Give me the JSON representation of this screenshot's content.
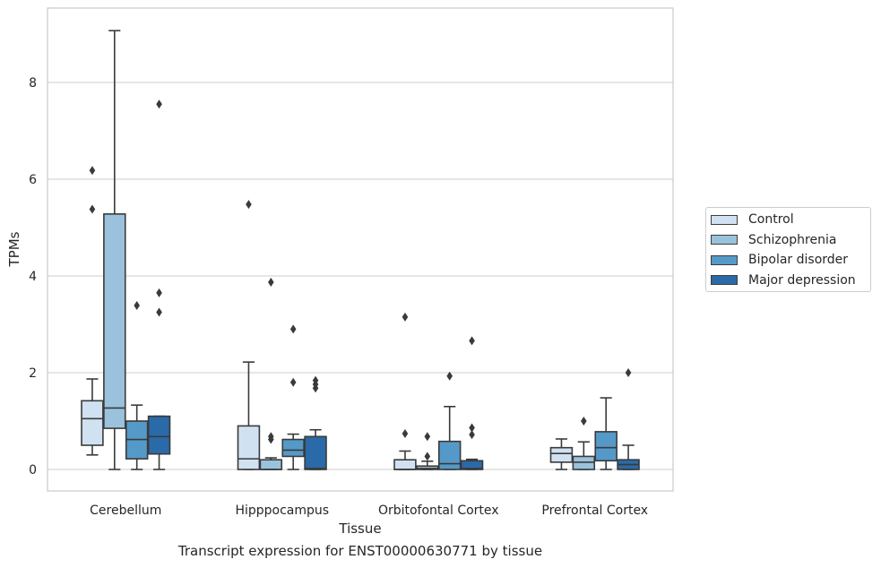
{
  "chart_data": {
    "type": "box",
    "title": "Transcript expression for ENST00000630771 by tissue",
    "xlabel": "Tissue",
    "ylabel": "TPMs",
    "ylim": [
      -0.45,
      9.6
    ],
    "yticks": [
      0,
      2,
      4,
      6,
      8
    ],
    "ytick_labels": [
      "0",
      "2",
      "4",
      "6",
      "8"
    ],
    "grid": true,
    "legend_position": "right",
    "categories": [
      "Cerebellum",
      "Hipppocampus",
      "Orbitofontal Cortex",
      "Prefrontal Cortex"
    ],
    "series": [
      {
        "name": "Control",
        "color": "#d0e1f1",
        "boxes": [
          {
            "whislo": 0.3,
            "q1": 0.5,
            "med": 1.05,
            "q3": 1.42,
            "whishi": 1.87,
            "fliers": [
              5.38,
              6.18
            ]
          },
          {
            "whislo": 0.0,
            "q1": 0.0,
            "med": 0.22,
            "q3": 0.9,
            "whishi": 2.22,
            "fliers": [
              5.48
            ]
          },
          {
            "whislo": 0.0,
            "q1": 0.0,
            "med": 0.0,
            "q3": 0.2,
            "whishi": 0.38,
            "fliers": [
              0.74,
              3.15
            ]
          },
          {
            "whislo": 0.0,
            "q1": 0.15,
            "med": 0.33,
            "q3": 0.45,
            "whishi": 0.63,
            "fliers": []
          }
        ]
      },
      {
        "name": "Schizophrenia",
        "color": "#9ac2dc",
        "boxes": [
          {
            "whislo": 0.0,
            "q1": 0.85,
            "med": 1.27,
            "q3": 5.28,
            "whishi": 9.07,
            "fliers": []
          },
          {
            "whislo": 0.0,
            "q1": 0.0,
            "med": 0.0,
            "q3": 0.2,
            "whishi": 0.24,
            "fliers": [
              0.62,
              0.68,
              3.87
            ]
          },
          {
            "whislo": 0.0,
            "q1": 0.0,
            "med": 0.02,
            "q3": 0.07,
            "whishi": 0.17,
            "fliers": [
              0.27,
              0.68
            ]
          },
          {
            "whislo": 0.0,
            "q1": 0.0,
            "med": 0.15,
            "q3": 0.27,
            "whishi": 0.57,
            "fliers": [
              1.0
            ]
          }
        ]
      },
      {
        "name": "Bipolar disorder",
        "color": "#5599c8",
        "boxes": [
          {
            "whislo": 0.0,
            "q1": 0.22,
            "med": 0.62,
            "q3": 1.0,
            "whishi": 1.33,
            "fliers": [
              3.39
            ]
          },
          {
            "whislo": 0.0,
            "q1": 0.27,
            "med": 0.4,
            "q3": 0.62,
            "whishi": 0.73,
            "fliers": [
              1.8,
              2.9
            ]
          },
          {
            "whislo": 0.0,
            "q1": 0.0,
            "med": 0.12,
            "q3": 0.58,
            "whishi": 1.3,
            "fliers": [
              1.93
            ]
          },
          {
            "whislo": 0.0,
            "q1": 0.18,
            "med": 0.45,
            "q3": 0.78,
            "whishi": 1.48,
            "fliers": []
          }
        ]
      },
      {
        "name": "Major depression",
        "color": "#2a6aa8",
        "boxes": [
          {
            "whislo": 0.0,
            "q1": 0.32,
            "med": 0.68,
            "q3": 1.1,
            "whishi": 1.1,
            "fliers": [
              3.25,
              3.65,
              7.55
            ]
          },
          {
            "whislo": 0.0,
            "q1": 0.0,
            "med": 0.02,
            "q3": 0.68,
            "whishi": 0.82,
            "fliers": [
              1.68,
              1.76,
              1.84
            ]
          },
          {
            "whislo": 0.0,
            "q1": 0.0,
            "med": 0.02,
            "q3": 0.18,
            "whishi": 0.21,
            "fliers": [
              0.72,
              0.86,
              2.66
            ]
          },
          {
            "whislo": 0.0,
            "q1": 0.0,
            "med": 0.1,
            "q3": 0.2,
            "whishi": 0.5,
            "fliers": [
              2.0
            ]
          }
        ]
      }
    ]
  }
}
